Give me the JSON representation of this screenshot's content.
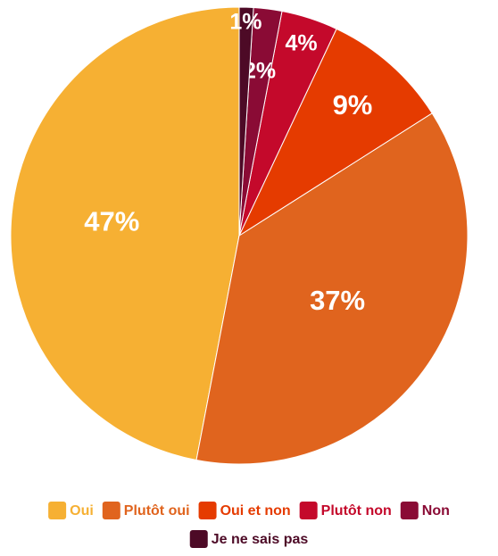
{
  "chart_data": {
    "type": "pie",
    "categories": [
      "Oui",
      "Plutôt oui",
      "Oui et non",
      "Plutôt non",
      "Non",
      "Je ne sais pas"
    ],
    "values": [
      47,
      37,
      9,
      4,
      2,
      1
    ],
    "value_labels": [
      "47%",
      "37%",
      "9%",
      "4%",
      "2%",
      "1%"
    ],
    "colors": [
      "#f6b033",
      "#e0641e",
      "#e53b00",
      "#c4092b",
      "#8a0b35",
      "#4d0a26"
    ],
    "legend": "bottom"
  }
}
